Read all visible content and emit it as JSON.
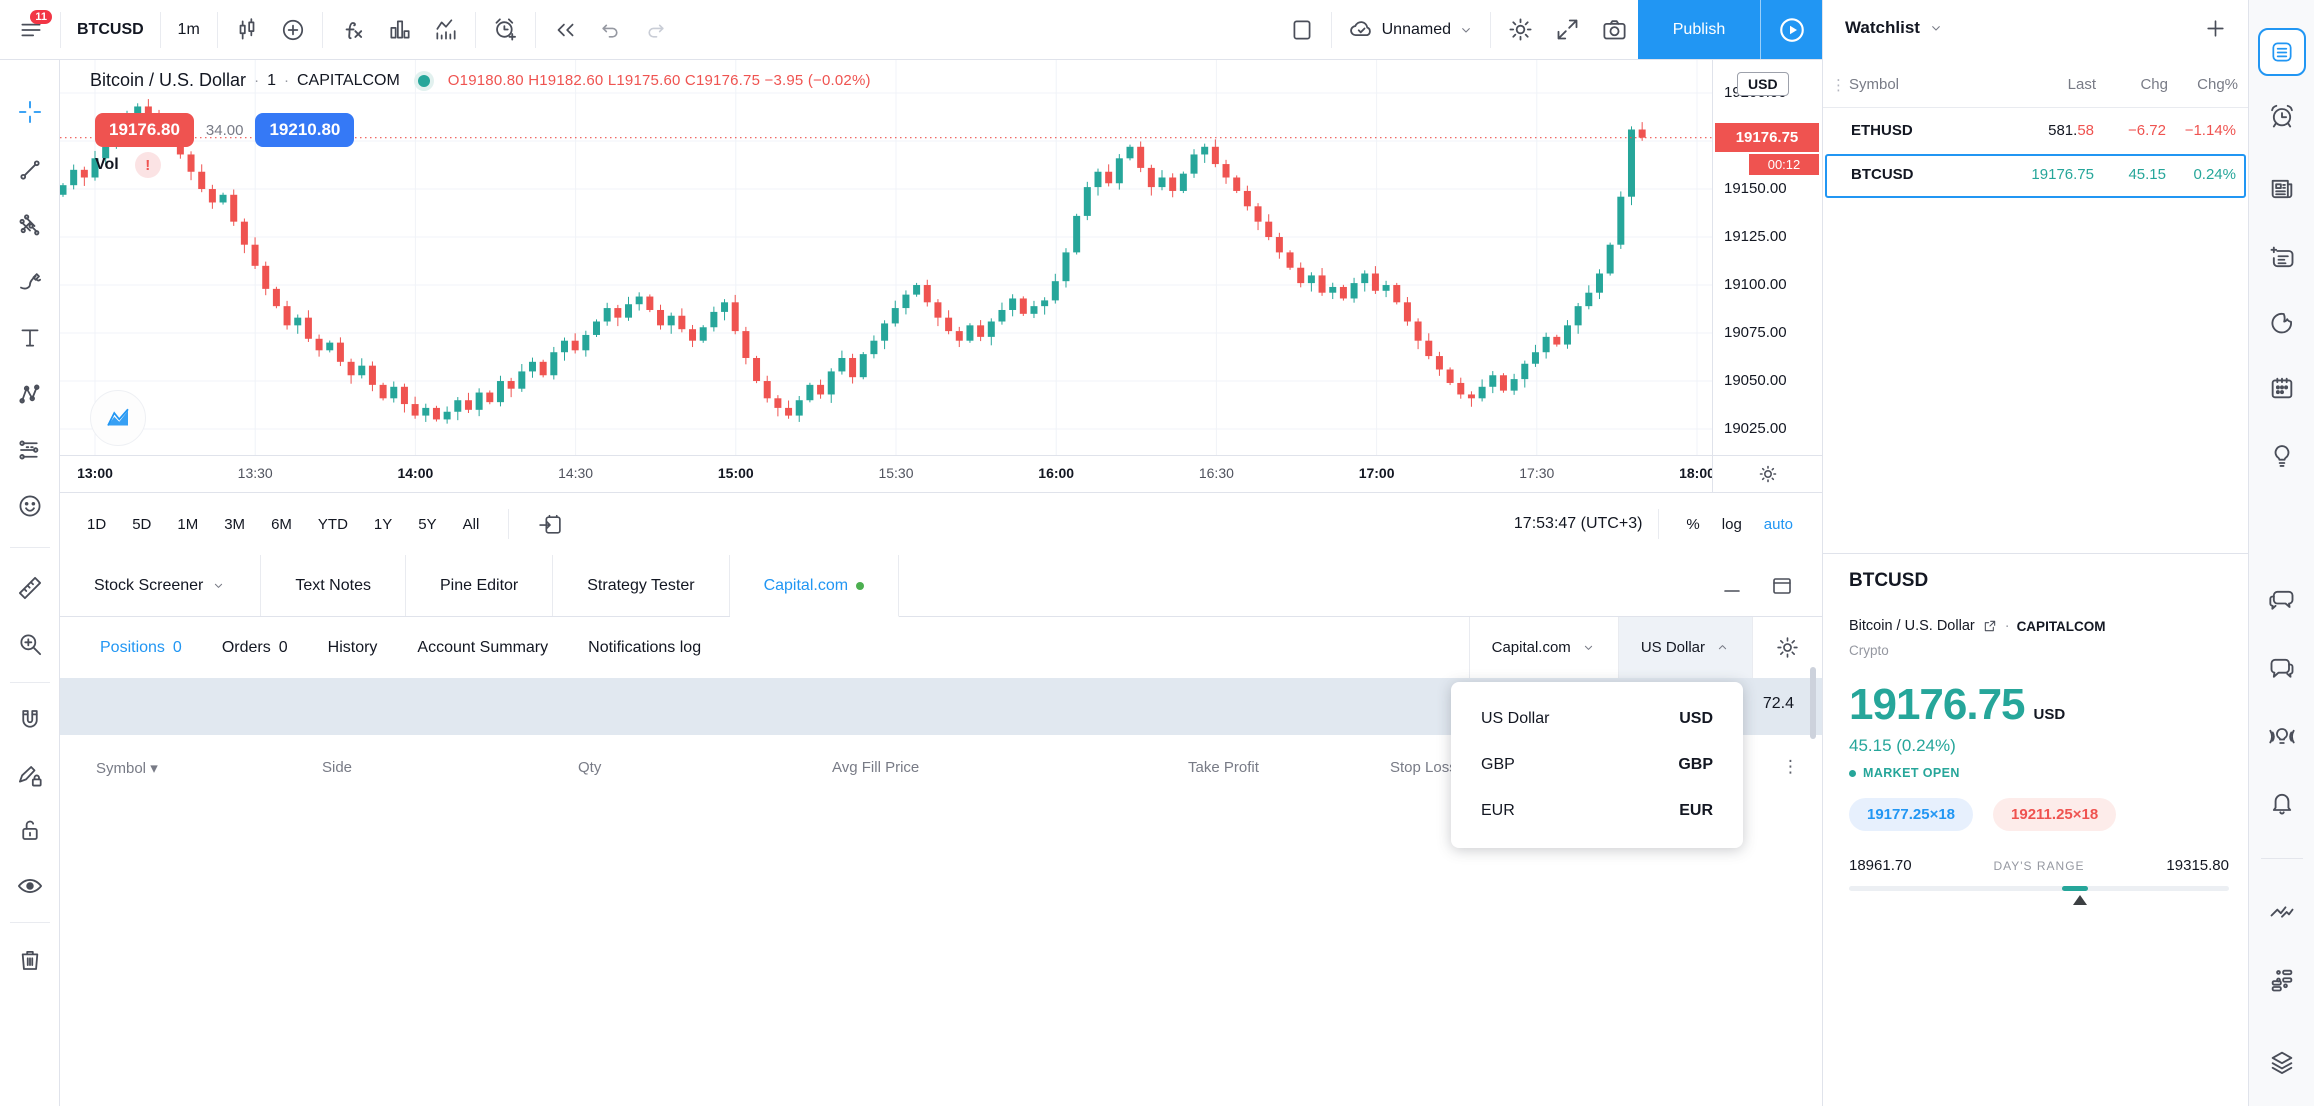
{
  "topbar": {
    "menu_badge": "11",
    "symbol": "BTCUSD",
    "interval": "1m",
    "layout_name": "Unnamed",
    "publish": "Publish"
  },
  "chart": {
    "header": {
      "title": "Bitcoin / U.S. Dollar",
      "interval": "1",
      "exchange": "CAPITALCOM",
      "ohlc": [
        {
          "k": "O",
          "v": "19180.80"
        },
        {
          "k": "H",
          "v": "19182.60"
        },
        {
          "k": "L",
          "v": "19175.60"
        },
        {
          "k": "C",
          "v": "19176.75"
        }
      ],
      "change": "−3.95 (−0.02%)"
    },
    "sell": "19176.80",
    "spread": "34.00",
    "buy": "19210.80",
    "vol": "Vol",
    "vol_warning": "!",
    "axis": {
      "chip": "USD",
      "labels": [
        {
          "p": 19200,
          "t": "19200.00"
        },
        {
          "p": 19150,
          "t": "19150.00"
        },
        {
          "p": 19125,
          "t": "19125.00"
        },
        {
          "p": 19100,
          "t": "19100.00"
        },
        {
          "p": 19075,
          "t": "19075.00"
        },
        {
          "p": 19050,
          "t": "19050.00"
        },
        {
          "p": 19025,
          "t": "19025.00"
        }
      ],
      "current": "19176.75",
      "countdown": "00:12"
    },
    "times": [
      "13:00",
      "13:30",
      "14:00",
      "14:30",
      "15:00",
      "15:30",
      "16:00",
      "16:30",
      "17:00",
      "17:30",
      "18:00"
    ],
    "footer": {
      "ranges": [
        "1D",
        "5D",
        "1M",
        "3M",
        "6M",
        "YTD",
        "1Y",
        "5Y",
        "All"
      ],
      "clock": "17:53:47 (UTC+3)",
      "percent": "%",
      "log": "log",
      "auto": "auto"
    },
    "chart_data": {
      "type": "candlestick",
      "symbol": "BTCUSD",
      "interval_minutes": 2,
      "x_range": [
        "13:00",
        "18:00"
      ],
      "grid": true,
      "price_line": 19176.75,
      "y_axis_min": 19011,
      "y_axis_max": 19217,
      "up_color": "#26a69a",
      "down_color": "#ef5350",
      "closes": [
        19152,
        19160,
        19156,
        19166,
        19172,
        19180,
        19188,
        19193,
        19189,
        19184,
        19176,
        19168,
        19159,
        19150,
        19143,
        19147,
        19133,
        19121,
        19110,
        19098,
        19089,
        19079,
        19083,
        19072,
        19066,
        19070,
        19060,
        19053,
        19058,
        19048,
        19041,
        19047,
        19038,
        19032,
        19036,
        19030,
        19034,
        19040,
        19035,
        19044,
        19039,
        19050,
        19046,
        19055,
        19060,
        19053,
        19065,
        19071,
        19066,
        19074,
        19081,
        19088,
        19083,
        19090,
        19094,
        19087,
        19079,
        19084,
        19077,
        19071,
        19078,
        19086,
        19091,
        19076,
        19062,
        19050,
        19041,
        19036,
        19032,
        19040,
        19048,
        19043,
        19055,
        19062,
        19052,
        19064,
        19071,
        19080,
        19088,
        19095,
        19100,
        19091,
        19083,
        19076,
        19071,
        19079,
        19073,
        19081,
        19087,
        19093,
        19085,
        19089,
        19092,
        19102,
        19117,
        19136,
        19151,
        19159,
        19153,
        19166,
        19172,
        19161,
        19151,
        19156,
        19149,
        19158,
        19168,
        19172,
        19163,
        19156,
        19149,
        19141,
        19133,
        19125,
        19117,
        19109,
        19101,
        19105,
        19096,
        19099,
        19093,
        19101,
        19106,
        19097,
        19100,
        19091,
        19081,
        19071,
        19063,
        19056,
        19049,
        19043,
        19041,
        19047,
        19053,
        19045,
        19051,
        19059,
        19065,
        19073,
        19069,
        19079,
        19089,
        19096,
        19106,
        19121,
        19146,
        19181,
        19176.75
      ]
    }
  },
  "panel": {
    "tabs": [
      {
        "label": "Stock Screener"
      },
      {
        "label": "Text Notes"
      },
      {
        "label": "Pine Editor"
      },
      {
        "label": "Strategy Tester"
      },
      {
        "label": "Capital.com"
      }
    ],
    "subtabs": {
      "positions": "Positions",
      "positions_count": "0",
      "orders": "Orders",
      "orders_count": "0",
      "history": "History",
      "account": "Account Summary",
      "notifications": "Notifications log"
    },
    "broker": "Capital.com",
    "currency": "US Dollar",
    "summary_partial": "72.4",
    "columns": [
      "Symbol",
      "Side",
      "Qty",
      "Avg Fill Price",
      "Take Profit",
      "Stop Loss"
    ],
    "dropdown": [
      {
        "label": "US Dollar",
        "code": "USD"
      },
      {
        "label": "GBP",
        "code": "GBP"
      },
      {
        "label": "EUR",
        "code": "EUR"
      }
    ]
  },
  "watchlist": {
    "title": "Watchlist",
    "columns": [
      "Symbol",
      "Last",
      "Chg",
      "Chg%"
    ],
    "rows": [
      {
        "symbol": "ETHUSD",
        "last_main": "581.",
        "last_tick": "58",
        "chg": "−6.72",
        "chgp": "−1.14%"
      },
      {
        "symbol": "BTCUSD",
        "last": "19176.75",
        "chg": "45.15",
        "chgp": "0.24%"
      }
    ]
  },
  "details": {
    "symbol": "BTCUSD",
    "name": "Bitcoin / U.S. Dollar",
    "exchange": "CAPITALCOM",
    "category": "Crypto",
    "price": "19176.75",
    "currency": "USD",
    "change": "45.15 (0.24%)",
    "status": "MARKET OPEN",
    "bid": "19177.25×18",
    "ask": "19211.25×18",
    "low": "18961.70",
    "range_label": "DAY'S RANGE",
    "high": "19315.80"
  }
}
